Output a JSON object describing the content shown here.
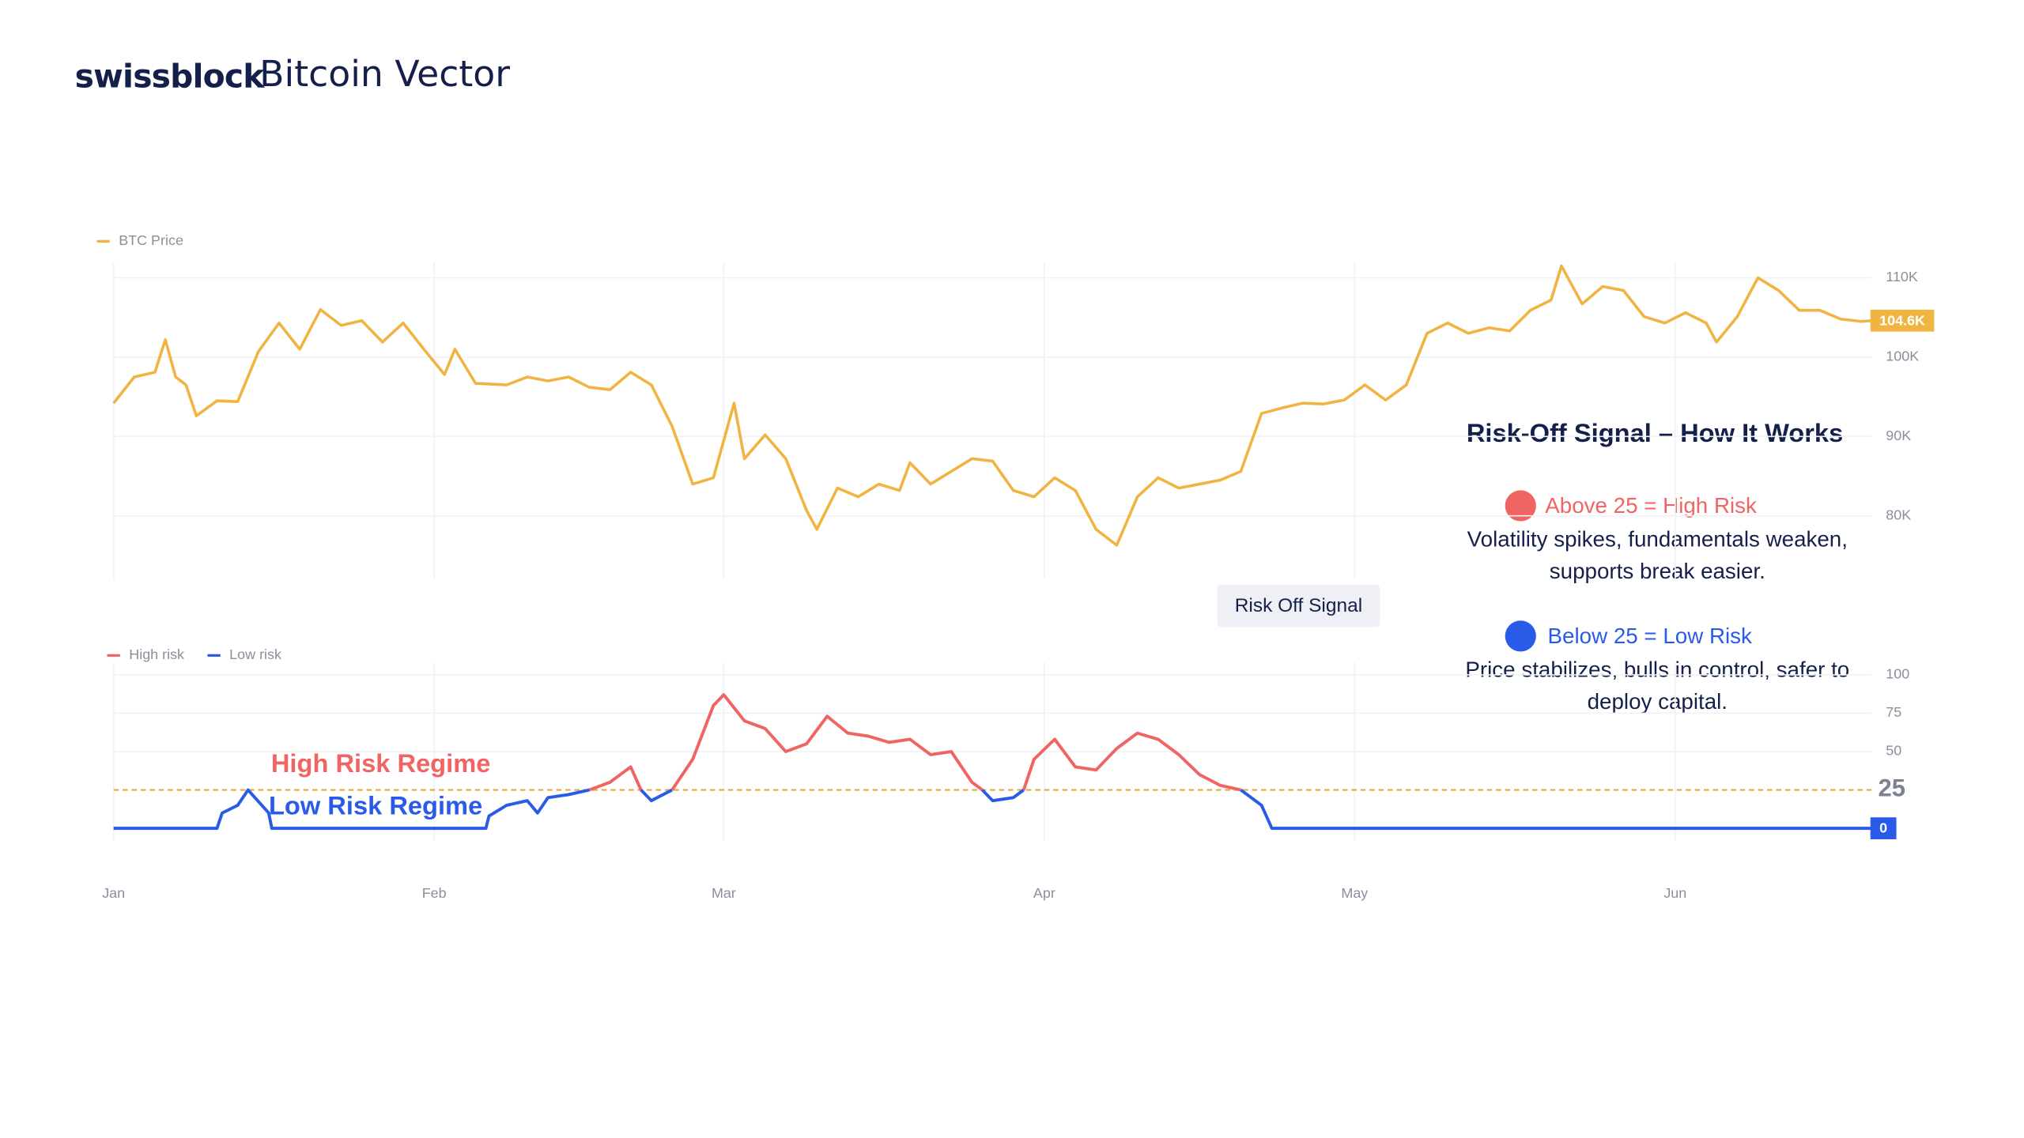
{
  "header": {
    "brand": "swissblock",
    "title": "Bitcoin Vector"
  },
  "info": {
    "title": "Risk-Off Signal – How It Works",
    "items": [
      {
        "label": "Above 25 = High Risk",
        "color": "#f06464",
        "lines": [
          "Volatility spikes, fundamentals weaken,",
          "supports break easier."
        ]
      },
      {
        "label": "Below 25 = Low Risk",
        "color": "#2a5be8",
        "lines": [
          "Price stabilizes, bulls in control, safer to",
          "deploy capital."
        ]
      }
    ]
  },
  "chart_data": [
    {
      "type": "line",
      "x": [
        0,
        2,
        4,
        5,
        6,
        7,
        8,
        10,
        12,
        14,
        16,
        18,
        20,
        22,
        24,
        26,
        28,
        30,
        32,
        33,
        35,
        38,
        40,
        42,
        44,
        46,
        48,
        50,
        52,
        54,
        56,
        58,
        60,
        61,
        63,
        65,
        67,
        68,
        70,
        72,
        74,
        76,
        77,
        79,
        81,
        83,
        85,
        87,
        89,
        91,
        93,
        95,
        97,
        99,
        101,
        103,
        105,
        107,
        109,
        111,
        113,
        115,
        117,
        119,
        121,
        123,
        125,
        127,
        129,
        131,
        133,
        135,
        137,
        139,
        140,
        142,
        144,
        146,
        148,
        150,
        152,
        154,
        155,
        157,
        159,
        161,
        163,
        165,
        167,
        169,
        170
      ],
      "series": [
        {
          "name": "BTC Price",
          "color": "#f0b443",
          "values": [
            94.2,
            97.5,
            98.1,
            102.2,
            97.5,
            96.5,
            92.6,
            94.5,
            94.4,
            100.7,
            104.3,
            101,
            106,
            104,
            104.6,
            101.9,
            104.3,
            101,
            97.8,
            101,
            96.7,
            96.5,
            97.5,
            97,
            97.5,
            96.2,
            95.9,
            98.1,
            96.5,
            91.3,
            84,
            84.8,
            94.2,
            87.2,
            90.2,
            87.2,
            80.7,
            78.3,
            83.5,
            82.4,
            84,
            83.2,
            86.7,
            84,
            85.6,
            87.2,
            86.9,
            83.2,
            82.4,
            84.8,
            83.2,
            78.3,
            76.3,
            82.4,
            84.8,
            83.5,
            84,
            84.5,
            85.6,
            92.9,
            93.6,
            94.2,
            94.1,
            94.6,
            96.5,
            94.6,
            96.5,
            103,
            104.3,
            103,
            103.7,
            103.3,
            105.9,
            107.2,
            111.5,
            106.7,
            108.9,
            108.4,
            105.1,
            104.3,
            105.6,
            104.3,
            101.9,
            105.1,
            110,
            108.4,
            105.9,
            105.9,
            104.8,
            104.5,
            104.6
          ]
        }
      ],
      "last_value_label": "104.6K",
      "xlim": [
        0,
        170
      ],
      "ylim": [
        72,
        112
      ],
      "yticks": [
        {
          "value": 80,
          "label": "80K"
        },
        {
          "value": 90,
          "label": "90K"
        },
        {
          "value": 100,
          "label": "100K"
        },
        {
          "value": 110,
          "label": "110K"
        }
      ],
      "grid": true
    },
    {
      "type": "line",
      "x": [
        0,
        10,
        10.5,
        12,
        13,
        15,
        15.3,
        36,
        36.3,
        38,
        40,
        41,
        42,
        44,
        46,
        48,
        50,
        51,
        52,
        54,
        56,
        58,
        59,
        61,
        63,
        65,
        67,
        69,
        71,
        73,
        75,
        77,
        79,
        81,
        83,
        84,
        85,
        87,
        88,
        89,
        91,
        93,
        95,
        97,
        99,
        101,
        103,
        105,
        107,
        109,
        111,
        112,
        170
      ],
      "series": [
        {
          "name": "High risk",
          "color": "#f06464",
          "values": [
            null,
            null,
            null,
            null,
            null,
            null,
            null,
            null,
            null,
            null,
            null,
            null,
            null,
            null,
            25,
            30,
            40,
            25,
            null,
            25,
            45,
            80,
            87,
            70,
            65,
            50,
            55,
            73,
            62,
            60,
            56,
            58,
            48,
            50,
            30,
            25,
            null,
            null,
            25,
            45,
            58,
            40,
            38,
            52,
            62,
            58,
            48,
            35,
            28,
            25,
            null,
            null,
            null
          ]
        },
        {
          "name": "Low risk",
          "color": "#2a5be8",
          "values": [
            0,
            0,
            10,
            15,
            25,
            10,
            0,
            0,
            8,
            15,
            18,
            10,
            20,
            22,
            25,
            null,
            null,
            25,
            18,
            25,
            null,
            null,
            null,
            null,
            null,
            null,
            null,
            null,
            null,
            null,
            null,
            null,
            null,
            null,
            null,
            25,
            18,
            20,
            25,
            null,
            null,
            null,
            null,
            null,
            null,
            null,
            null,
            null,
            null,
            25,
            15,
            0,
            0
          ]
        }
      ],
      "xlim": [
        0,
        170
      ],
      "ylim": [
        -8,
        108
      ],
      "yticks": [
        50,
        75,
        100
      ],
      "xticks": [
        {
          "value": 0,
          "label": "Jan"
        },
        {
          "value": 31,
          "label": "Feb"
        },
        {
          "value": 59,
          "label": "Mar"
        },
        {
          "value": 90,
          "label": "Apr"
        },
        {
          "value": 120,
          "label": "May"
        },
        {
          "value": 151,
          "label": "Jun"
        }
      ],
      "threshold": 25,
      "threshold_color": "#e8a93a",
      "annotations": [
        "High Risk Regime",
        "Low Risk Regime"
      ],
      "signal_label": "Risk Off Signal",
      "grid": true
    }
  ]
}
